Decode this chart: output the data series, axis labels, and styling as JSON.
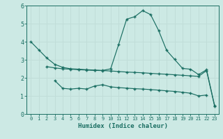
{
  "xlabel": "Humidex (Indice chaleur)",
  "bg_color": "#cce9e4",
  "line_color": "#1a6e62",
  "grid_color": "#c0ddd8",
  "xlim": [
    -0.5,
    23.5
  ],
  "ylim": [
    0,
    6
  ],
  "line1_x": [
    0,
    1,
    2,
    3,
    4,
    5,
    6,
    7,
    8,
    9,
    10,
    11,
    12,
    13,
    14,
    15,
    16,
    17,
    18,
    19,
    20,
    21,
    22,
    23
  ],
  "line1_y": [
    4.0,
    3.55,
    3.1,
    2.75,
    2.58,
    2.5,
    2.48,
    2.45,
    2.43,
    2.41,
    2.5,
    3.85,
    5.25,
    5.38,
    5.72,
    5.5,
    4.62,
    3.52,
    3.02,
    2.52,
    2.48,
    2.18,
    2.45,
    0.48
  ],
  "line2_x": [
    2,
    3,
    4,
    5,
    6,
    7,
    8,
    9,
    10,
    11,
    12,
    13,
    14,
    15,
    16,
    17,
    18,
    19,
    20,
    21,
    22,
    23
  ],
  "line2_y": [
    2.62,
    2.55,
    2.5,
    2.48,
    2.45,
    2.43,
    2.41,
    2.4,
    2.38,
    2.35,
    2.32,
    2.3,
    2.28,
    2.25,
    2.22,
    2.2,
    2.17,
    2.14,
    2.11,
    2.08,
    2.4,
    0.44
  ],
  "line3_x": [
    3,
    4,
    5,
    6,
    7,
    8,
    9,
    10,
    11,
    12,
    13,
    14,
    15,
    16,
    17,
    18,
    19,
    20,
    21,
    22
  ],
  "line3_y": [
    1.85,
    1.42,
    1.38,
    1.42,
    1.38,
    1.55,
    1.62,
    1.5,
    1.46,
    1.43,
    1.4,
    1.38,
    1.35,
    1.32,
    1.28,
    1.25,
    1.2,
    1.15,
    1.0,
    1.05
  ],
  "xticks": [
    0,
    1,
    2,
    3,
    4,
    5,
    6,
    7,
    8,
    9,
    10,
    11,
    12,
    13,
    14,
    15,
    16,
    17,
    18,
    19,
    20,
    21,
    22,
    23
  ],
  "yticks": [
    0,
    1,
    2,
    3,
    4,
    5,
    6
  ]
}
